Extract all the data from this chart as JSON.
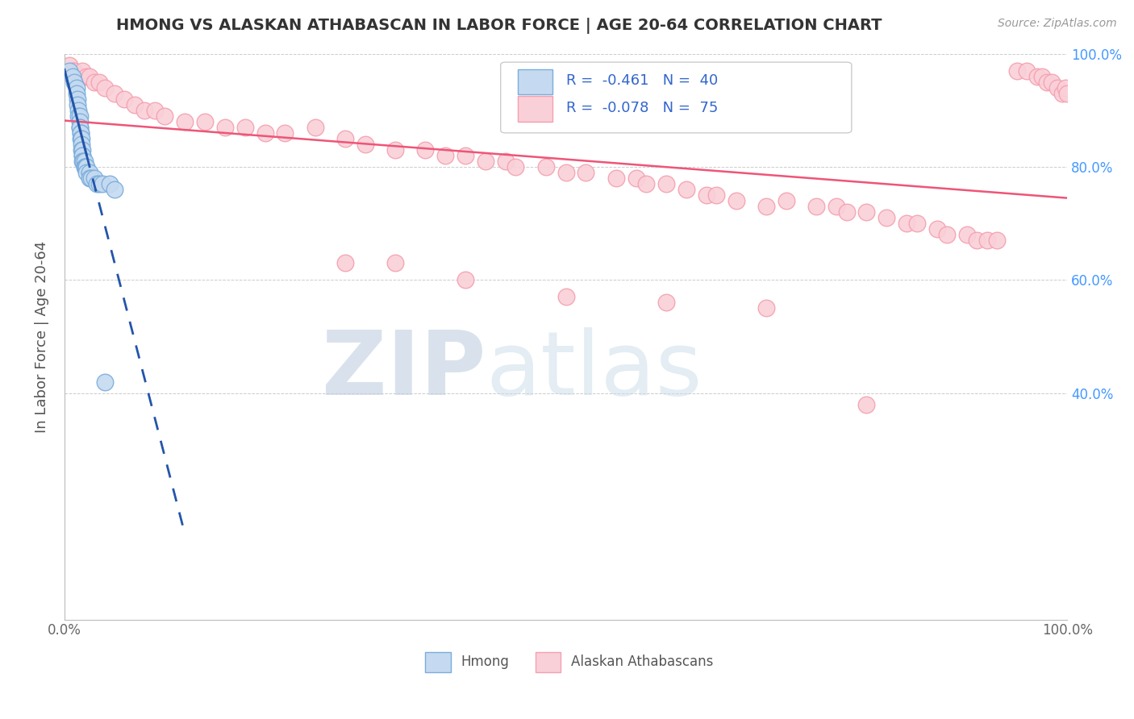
{
  "title": "HMONG VS ALASKAN ATHABASCAN IN LABOR FORCE | AGE 20-64 CORRELATION CHART",
  "source": "Source: ZipAtlas.com",
  "ylabel": "In Labor Force | Age 20-64",
  "background_color": "#ffffff",
  "grid_color": "#cccccc",
  "legend_r_blue": "-0.461",
  "legend_n_blue": "40",
  "legend_r_pink": "-0.078",
  "legend_n_pink": "75",
  "blue_edge": "#7aaddc",
  "blue_face": "#c5daf0",
  "pink_edge": "#f4a0b0",
  "pink_face": "#fad0d8",
  "trend_blue_color": "#2255aa",
  "trend_pink_color": "#ee5577",
  "watermark_zip": "#c8d8e8",
  "watermark_atlas": "#d8e8f4",
  "xlim": [
    0,
    1
  ],
  "ylim": [
    0,
    1
  ],
  "xticks": [
    0.0,
    0.1,
    0.2,
    0.3,
    0.4,
    0.5,
    0.6,
    0.7,
    0.8,
    0.9,
    1.0
  ],
  "ytick_values": [
    0.4,
    0.6,
    0.8,
    1.0
  ],
  "ytick_labels": [
    "40.0%",
    "60.0%",
    "80.0%",
    "100.0%"
  ],
  "hmong_x": [
    0.005,
    0.008,
    0.01,
    0.012,
    0.012,
    0.013,
    0.013,
    0.014,
    0.014,
    0.015,
    0.015,
    0.015,
    0.015,
    0.016,
    0.016,
    0.016,
    0.017,
    0.017,
    0.017,
    0.018,
    0.018,
    0.018,
    0.018,
    0.019,
    0.02,
    0.02,
    0.02,
    0.021,
    0.022,
    0.022,
    0.025,
    0.025,
    0.027,
    0.03,
    0.032,
    0.035,
    0.038,
    0.04,
    0.045,
    0.05
  ],
  "hmong_y": [
    0.97,
    0.96,
    0.95,
    0.94,
    0.93,
    0.92,
    0.91,
    0.9,
    0.89,
    0.89,
    0.88,
    0.87,
    0.87,
    0.86,
    0.86,
    0.85,
    0.85,
    0.84,
    0.83,
    0.83,
    0.82,
    0.82,
    0.81,
    0.81,
    0.81,
    0.8,
    0.8,
    0.8,
    0.8,
    0.79,
    0.79,
    0.78,
    0.78,
    0.78,
    0.77,
    0.77,
    0.77,
    0.42,
    0.77,
    0.76
  ],
  "alaska_x": [
    0.005,
    0.008,
    0.01,
    0.015,
    0.018,
    0.022,
    0.025,
    0.03,
    0.035,
    0.04,
    0.05,
    0.06,
    0.07,
    0.08,
    0.09,
    0.1,
    0.12,
    0.14,
    0.16,
    0.18,
    0.2,
    0.22,
    0.25,
    0.28,
    0.3,
    0.33,
    0.36,
    0.38,
    0.4,
    0.42,
    0.44,
    0.45,
    0.48,
    0.5,
    0.52,
    0.55,
    0.57,
    0.58,
    0.6,
    0.62,
    0.64,
    0.65,
    0.67,
    0.7,
    0.72,
    0.75,
    0.77,
    0.78,
    0.8,
    0.82,
    0.84,
    0.85,
    0.87,
    0.88,
    0.9,
    0.91,
    0.92,
    0.93,
    0.95,
    0.96,
    0.97,
    0.975,
    0.98,
    0.985,
    0.99,
    0.995,
    0.998,
    1.0,
    0.28,
    0.33,
    0.4,
    0.5,
    0.6,
    0.7,
    0.8
  ],
  "alaska_y": [
    0.98,
    0.97,
    0.97,
    0.96,
    0.97,
    0.96,
    0.96,
    0.95,
    0.95,
    0.94,
    0.93,
    0.92,
    0.91,
    0.9,
    0.9,
    0.89,
    0.88,
    0.88,
    0.87,
    0.87,
    0.86,
    0.86,
    0.87,
    0.85,
    0.84,
    0.83,
    0.83,
    0.82,
    0.82,
    0.81,
    0.81,
    0.8,
    0.8,
    0.79,
    0.79,
    0.78,
    0.78,
    0.77,
    0.77,
    0.76,
    0.75,
    0.75,
    0.74,
    0.73,
    0.74,
    0.73,
    0.73,
    0.72,
    0.72,
    0.71,
    0.7,
    0.7,
    0.69,
    0.68,
    0.68,
    0.67,
    0.67,
    0.67,
    0.97,
    0.97,
    0.96,
    0.96,
    0.95,
    0.95,
    0.94,
    0.93,
    0.94,
    0.93,
    0.63,
    0.63,
    0.6,
    0.57,
    0.56,
    0.55,
    0.38
  ]
}
